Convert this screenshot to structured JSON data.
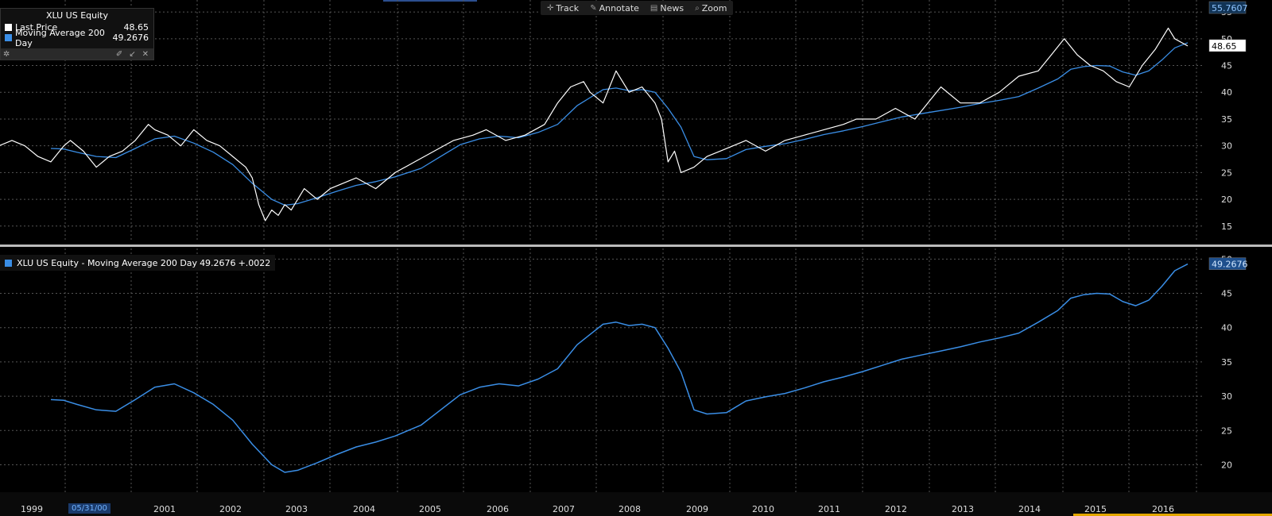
{
  "toolbar": {
    "items": [
      {
        "label": "Track",
        "icon": "crosshair-icon"
      },
      {
        "label": "Annotate",
        "icon": "pencil-icon"
      },
      {
        "label": "News",
        "icon": "news-icon"
      },
      {
        "label": "Zoom",
        "icon": "magnifier-icon"
      }
    ]
  },
  "legend_top": {
    "title": "XLU US Equity",
    "rows": [
      {
        "label": "Last Price",
        "value": "48.65",
        "color": "#ffffff"
      },
      {
        "label": "Moving Average 200 Day",
        "value": "49.2676",
        "color": "#3a8ee6"
      }
    ]
  },
  "legend_bottom": {
    "label": "XLU US Equity - Moving Average 200 Day",
    "value": "49.2676",
    "change": "+.0022",
    "color": "#3a8ee6"
  },
  "date_badge": "05/31/00",
  "axis_tags": {
    "high": "55.7607",
    "last_price": "48.65",
    "ma_bottom": "49.2676"
  },
  "chart_data": [
    {
      "type": "line",
      "title": "XLU US Equity",
      "ylim": [
        12,
        55.7607
      ],
      "yticks": [
        15,
        20,
        25,
        30,
        35,
        40,
        45,
        50,
        55
      ],
      "grid": true,
      "legend_position": "top-left",
      "series": [
        {
          "name": "Last Price",
          "color": "#ffffff",
          "x": [
            1998.5,
            1998.7,
            1998.9,
            1999.1,
            1999.3,
            1999.5,
            1999.6,
            1999.8,
            2000.0,
            2000.2,
            2000.4,
            2000.6,
            2000.8,
            2000.9,
            2001.1,
            2001.3,
            2001.5,
            2001.7,
            2001.9,
            2002.1,
            2002.2,
            2002.3,
            2002.4,
            2002.5,
            2002.6,
            2002.7,
            2002.8,
            2002.9,
            2003.0,
            2003.2,
            2003.4,
            2003.6,
            2003.8,
            2004.0,
            2004.3,
            2004.6,
            2004.9,
            2005.2,
            2005.5,
            2005.8,
            2006.0,
            2006.3,
            2006.6,
            2006.9,
            2007.1,
            2007.3,
            2007.5,
            2007.6,
            2007.8,
            2008.0,
            2008.2,
            2008.4,
            2008.6,
            2008.7,
            2008.8,
            2008.9,
            2009.0,
            2009.2,
            2009.4,
            2009.6,
            2009.8,
            2010.0,
            2010.3,
            2010.6,
            2010.9,
            2011.2,
            2011.5,
            2011.7,
            2012.0,
            2012.3,
            2012.6,
            2012.8,
            2013.0,
            2013.3,
            2013.6,
            2013.9,
            2014.2,
            2014.5,
            2014.7,
            2014.9,
            2015.1,
            2015.3,
            2015.5,
            2015.7,
            2015.9,
            2016.1,
            2016.3,
            2016.5,
            2016.6,
            2016.8
          ],
          "values": [
            30,
            31,
            30,
            28,
            27,
            30,
            31,
            29,
            26,
            28,
            29,
            31,
            34,
            33,
            32,
            30,
            33,
            31,
            30,
            28,
            27,
            26,
            24,
            19,
            16,
            18,
            17,
            19,
            18,
            22,
            20,
            22,
            23,
            24,
            22,
            25,
            27,
            29,
            31,
            32,
            33,
            31,
            32,
            34,
            38,
            41,
            42,
            40,
            38,
            44,
            40,
            41,
            38,
            35,
            27,
            29,
            25,
            26,
            28,
            29,
            30,
            31,
            29,
            31,
            32,
            33,
            34,
            35,
            35,
            37,
            35,
            38,
            41,
            38,
            38,
            40,
            43,
            44,
            47,
            50,
            47,
            45,
            44,
            42,
            41,
            45,
            48,
            52,
            50,
            48.65
          ]
        },
        {
          "name": "Moving Average 200 Day",
          "color": "#3a8ee6",
          "x": [
            1999.3,
            1999.5,
            1999.7,
            2000.0,
            2000.3,
            2000.6,
            2000.9,
            2001.2,
            2001.5,
            2001.8,
            2002.1,
            2002.4,
            2002.7,
            2002.9,
            2003.1,
            2003.4,
            2003.7,
            2004.0,
            2004.3,
            2004.6,
            2005.0,
            2005.3,
            2005.6,
            2005.9,
            2006.2,
            2006.5,
            2006.8,
            2007.1,
            2007.4,
            2007.6,
            2007.8,
            2008.0,
            2008.2,
            2008.4,
            2008.6,
            2008.8,
            2009.0,
            2009.2,
            2009.4,
            2009.7,
            2010.0,
            2010.3,
            2010.6,
            2010.9,
            2011.2,
            2011.5,
            2011.8,
            2012.1,
            2012.4,
            2012.7,
            2013.0,
            2013.3,
            2013.6,
            2013.9,
            2014.2,
            2014.5,
            2014.8,
            2015.0,
            2015.2,
            2015.4,
            2015.6,
            2015.8,
            2016.0,
            2016.2,
            2016.4,
            2016.6,
            2016.8
          ],
          "values": [
            29.5,
            29.4,
            28.8,
            28.0,
            27.8,
            29.5,
            31.3,
            31.8,
            30.5,
            28.8,
            26.5,
            23.0,
            20.0,
            18.9,
            19.2,
            20.3,
            21.5,
            22.6,
            23.3,
            24.2,
            25.8,
            28.0,
            30.2,
            31.3,
            31.8,
            31.5,
            32.5,
            34.0,
            37.5,
            39.0,
            40.5,
            40.8,
            40.3,
            40.5,
            40.0,
            37.0,
            33.5,
            28.0,
            27.4,
            27.6,
            29.3,
            29.9,
            30.4,
            31.2,
            32.1,
            32.8,
            33.6,
            34.5,
            35.4,
            36.0,
            36.6,
            37.2,
            37.9,
            38.5,
            39.2,
            40.8,
            42.5,
            44.3,
            44.8,
            45.0,
            44.9,
            43.8,
            43.2,
            44.0,
            46.0,
            48.3,
            49.2676
          ]
        }
      ]
    },
    {
      "type": "line",
      "title": "XLU US Equity - Moving Average 200 Day",
      "ylim": [
        16,
        50.5
      ],
      "yticks": [
        20,
        25,
        30,
        35,
        40,
        45,
        50
      ],
      "xticks": [
        "1999",
        "2001",
        "2002",
        "2003",
        "2004",
        "2005",
        "2006",
        "2007",
        "2008",
        "2009",
        "2010",
        "2011",
        "2012",
        "2013",
        "2014",
        "2015",
        "2016"
      ],
      "grid": true,
      "series": [
        {
          "name": "Moving Average 200 Day",
          "color": "#3a8ee6",
          "x": [
            1999.3,
            1999.5,
            1999.7,
            2000.0,
            2000.3,
            2000.6,
            2000.9,
            2001.2,
            2001.5,
            2001.8,
            2002.1,
            2002.4,
            2002.7,
            2002.9,
            2003.1,
            2003.4,
            2003.7,
            2004.0,
            2004.3,
            2004.6,
            2005.0,
            2005.3,
            2005.6,
            2005.9,
            2006.2,
            2006.5,
            2006.8,
            2007.1,
            2007.4,
            2007.6,
            2007.8,
            2008.0,
            2008.2,
            2008.4,
            2008.6,
            2008.8,
            2009.0,
            2009.2,
            2009.4,
            2009.7,
            2010.0,
            2010.3,
            2010.6,
            2010.9,
            2011.2,
            2011.5,
            2011.8,
            2012.1,
            2012.4,
            2012.7,
            2013.0,
            2013.3,
            2013.6,
            2013.9,
            2014.2,
            2014.5,
            2014.8,
            2015.0,
            2015.2,
            2015.4,
            2015.6,
            2015.8,
            2016.0,
            2016.2,
            2016.4,
            2016.6,
            2016.8
          ],
          "values": [
            29.5,
            29.4,
            28.8,
            28.0,
            27.8,
            29.5,
            31.3,
            31.8,
            30.5,
            28.8,
            26.5,
            23.0,
            20.0,
            18.9,
            19.2,
            20.3,
            21.5,
            22.6,
            23.3,
            24.2,
            25.8,
            28.0,
            30.2,
            31.3,
            31.8,
            31.5,
            32.5,
            34.0,
            37.5,
            39.0,
            40.5,
            40.8,
            40.3,
            40.5,
            40.0,
            37.0,
            33.5,
            28.0,
            27.4,
            27.6,
            29.3,
            29.9,
            30.4,
            31.2,
            32.1,
            32.8,
            33.6,
            34.5,
            35.4,
            36.0,
            36.6,
            37.2,
            37.9,
            38.5,
            39.2,
            40.8,
            42.5,
            44.3,
            44.8,
            45.0,
            44.9,
            43.8,
            43.2,
            44.0,
            46.0,
            48.3,
            49.2676
          ]
        }
      ]
    }
  ]
}
